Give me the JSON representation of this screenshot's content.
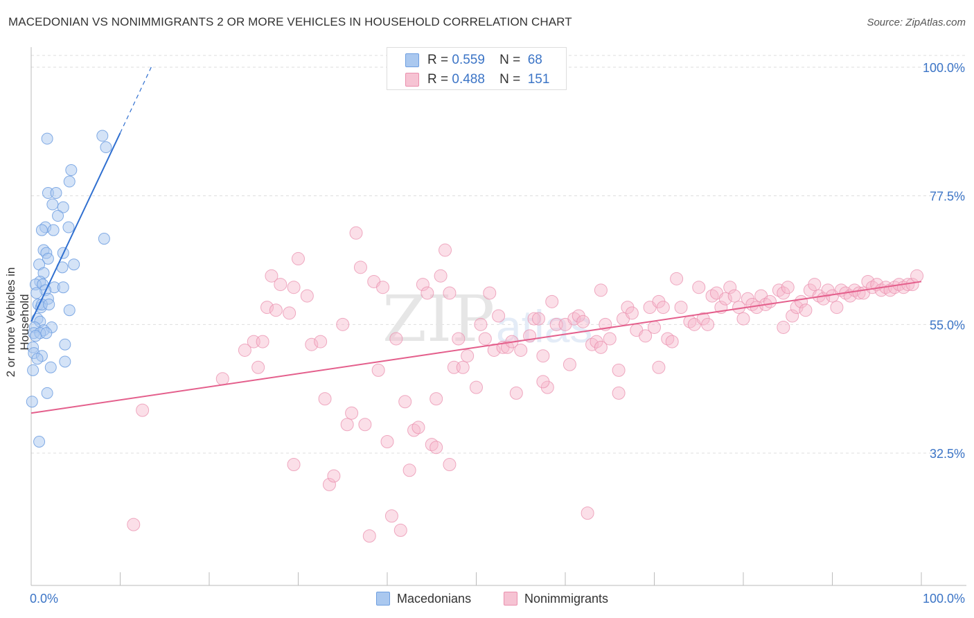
{
  "title": "MACEDONIAN VS NONIMMIGRANTS 2 OR MORE VEHICLES IN HOUSEHOLD CORRELATION CHART",
  "source": "Source: ZipAtlas.com",
  "watermark": {
    "zip": "ZIP",
    "atlas": "atlas"
  },
  "legend_stats": {
    "macedonians": {
      "r_label": "R =",
      "r": "0.559",
      "n_label": "N =",
      "n": "68"
    },
    "nonimmigrants": {
      "r_label": "R =",
      "r": "0.488",
      "n_label": "N =",
      "n": "151"
    }
  },
  "legend_bottom": {
    "macedonians": "Macedonians",
    "nonimmigrants": "Nonimmigrants"
  },
  "colors": {
    "blue_fill": "#aac8ef",
    "blue_stroke": "#6d9ee0",
    "blue_line": "#2f6fd0",
    "pink_fill": "#f6b9cb",
    "pink_stroke": "#ea8fad",
    "pink_line": "#e45f8c",
    "tick_text": "#3b74c6",
    "grid": "#dddddd"
  },
  "chart_data": {
    "type": "scatter",
    "title": "MACEDONIAN VS NONIMMIGRANTS 2 OR MORE VEHICLES IN HOUSEHOLD CORRELATION CHART",
    "xlabel": "",
    "ylabel": "2 or more Vehicles in Household",
    "xlim": [
      0,
      100
    ],
    "ylim": [
      10,
      102
    ],
    "x_tick_labels": [
      "0.0%",
      "100.0%"
    ],
    "y_ticks": [
      32.5,
      55.0,
      77.5,
      100.0
    ],
    "y_tick_labels": [
      "32.5%",
      "55.0%",
      "77.5%",
      "100.0%"
    ],
    "grid": true,
    "series": [
      {
        "name": "Macedonians",
        "r": 0.559,
        "n": 68,
        "trend": {
          "x0": 0,
          "y0": 55.5,
          "x1": 10,
          "y1": 88.5,
          "dash_to_x": 13.5
        },
        "points": [
          [
            1.8,
            87.5
          ],
          [
            8.0,
            88.0
          ],
          [
            8.4,
            86.0
          ],
          [
            4.5,
            82.0
          ],
          [
            4.3,
            80.0
          ],
          [
            1.9,
            78.0
          ],
          [
            2.8,
            78.0
          ],
          [
            2.4,
            76.0
          ],
          [
            3.6,
            75.5
          ],
          [
            3.0,
            74.0
          ],
          [
            1.6,
            72.0
          ],
          [
            2.5,
            71.5
          ],
          [
            4.2,
            72.0
          ],
          [
            1.2,
            71.5
          ],
          [
            8.2,
            70.0
          ],
          [
            1.4,
            68.0
          ],
          [
            1.7,
            67.5
          ],
          [
            3.6,
            67.5
          ],
          [
            1.9,
            66.5
          ],
          [
            4.8,
            65.5
          ],
          [
            0.9,
            65.5
          ],
          [
            3.5,
            65.0
          ],
          [
            1.4,
            64.0
          ],
          [
            1.0,
            62.5
          ],
          [
            0.5,
            62.0
          ],
          [
            1.3,
            62.0
          ],
          [
            2.6,
            61.5
          ],
          [
            3.6,
            61.5
          ],
          [
            1.6,
            61.0
          ],
          [
            0.6,
            60.5
          ],
          [
            1.9,
            59.5
          ],
          [
            0.8,
            58.5
          ],
          [
            1.1,
            58.0
          ],
          [
            1.2,
            58.5
          ],
          [
            2.0,
            58.5
          ],
          [
            4.3,
            57.5
          ],
          [
            0.7,
            56.0
          ],
          [
            1.0,
            55.5
          ],
          [
            0.4,
            54.5
          ],
          [
            2.3,
            54.5
          ],
          [
            1.4,
            54.0
          ],
          [
            0.3,
            53.5
          ],
          [
            1.0,
            53.5
          ],
          [
            1.7,
            53.5
          ],
          [
            0.5,
            53.0
          ],
          [
            0.2,
            51.0
          ],
          [
            3.8,
            51.5
          ],
          [
            0.3,
            50.0
          ],
          [
            1.2,
            49.5
          ],
          [
            0.7,
            49.0
          ],
          [
            3.8,
            48.5
          ],
          [
            2.2,
            47.5
          ],
          [
            0.2,
            47.0
          ],
          [
            1.8,
            43.0
          ],
          [
            0.1,
            41.5
          ],
          [
            0.9,
            34.5
          ]
        ]
      },
      {
        "name": "Nonimmigrants",
        "r": 0.488,
        "n": 151,
        "trend": {
          "x0": 0,
          "y0": 39.5,
          "x1": 100,
          "y1": 62.5
        },
        "points": [
          [
            12.5,
            40.0
          ],
          [
            11.5,
            20.0
          ],
          [
            21.5,
            45.5
          ],
          [
            24.0,
            50.5
          ],
          [
            25.0,
            52.0
          ],
          [
            25.5,
            47.5
          ],
          [
            26.0,
            52.0
          ],
          [
            26.5,
            58.0
          ],
          [
            27.0,
            63.5
          ],
          [
            27.5,
            57.5
          ],
          [
            28.0,
            62.0
          ],
          [
            29.0,
            57.0
          ],
          [
            29.5,
            30.5
          ],
          [
            29.5,
            61.5
          ],
          [
            30.0,
            66.5
          ],
          [
            31.0,
            60.0
          ],
          [
            31.5,
            51.5
          ],
          [
            32.5,
            52.0
          ],
          [
            33.0,
            42.0
          ],
          [
            33.5,
            27.0
          ],
          [
            34.0,
            28.5
          ],
          [
            35.0,
            55.0
          ],
          [
            35.5,
            37.5
          ],
          [
            36.0,
            39.5
          ],
          [
            36.5,
            71.0
          ],
          [
            37.0,
            65.0
          ],
          [
            37.5,
            37.5
          ],
          [
            38.0,
            18.0
          ],
          [
            38.5,
            62.5
          ],
          [
            39.5,
            61.5
          ],
          [
            40.0,
            34.5
          ],
          [
            40.5,
            21.5
          ],
          [
            41.5,
            19.0
          ],
          [
            42.0,
            41.5
          ],
          [
            42.5,
            29.5
          ],
          [
            43.0,
            36.5
          ],
          [
            43.5,
            37.0
          ],
          [
            44.0,
            62.0
          ],
          [
            44.5,
            60.5
          ],
          [
            45.0,
            34.0
          ],
          [
            45.5,
            33.5
          ],
          [
            45.5,
            42.0
          ],
          [
            46.0,
            63.5
          ],
          [
            46.5,
            68.0
          ],
          [
            47.0,
            30.5
          ],
          [
            47.0,
            60.5
          ],
          [
            47.5,
            47.5
          ],
          [
            48.0,
            52.5
          ],
          [
            48.5,
            47.5
          ],
          [
            49.0,
            49.5
          ],
          [
            50.0,
            44.0
          ],
          [
            50.5,
            55.0
          ],
          [
            51.0,
            52.5
          ],
          [
            51.5,
            60.5
          ],
          [
            52.0,
            50.5
          ],
          [
            52.5,
            56.5
          ],
          [
            53.0,
            51.0
          ],
          [
            53.5,
            51.0
          ],
          [
            54.0,
            52.0
          ],
          [
            54.5,
            43.0
          ],
          [
            55.0,
            50.5
          ],
          [
            56.0,
            53.0
          ],
          [
            56.5,
            56.0
          ],
          [
            57.0,
            56.0
          ],
          [
            57.5,
            49.5
          ],
          [
            58.0,
            44.0
          ],
          [
            58.5,
            59.0
          ],
          [
            59.0,
            55.0
          ],
          [
            60.0,
            55.0
          ],
          [
            60.5,
            48.0
          ],
          [
            61.0,
            56.0
          ],
          [
            61.5,
            56.5
          ],
          [
            62.0,
            55.5
          ],
          [
            62.5,
            22.0
          ],
          [
            63.0,
            51.5
          ],
          [
            63.5,
            52.0
          ],
          [
            64.0,
            61.0
          ],
          [
            64.5,
            55.0
          ],
          [
            65.0,
            52.5
          ],
          [
            66.0,
            47.0
          ],
          [
            66.5,
            56.0
          ],
          [
            67.0,
            58.0
          ],
          [
            67.5,
            57.0
          ],
          [
            68.0,
            54.0
          ],
          [
            69.0,
            53.0
          ],
          [
            69.5,
            58.0
          ],
          [
            70.0,
            54.5
          ],
          [
            70.5,
            59.0
          ],
          [
            71.0,
            58.0
          ],
          [
            71.5,
            52.5
          ],
          [
            72.0,
            52.0
          ],
          [
            72.5,
            63.0
          ],
          [
            73.0,
            58.0
          ],
          [
            74.0,
            55.5
          ],
          [
            74.5,
            55.0
          ],
          [
            75.0,
            61.5
          ],
          [
            75.5,
            56.0
          ],
          [
            76.0,
            55.0
          ],
          [
            76.5,
            60.0
          ],
          [
            77.0,
            60.5
          ],
          [
            77.5,
            58.0
          ],
          [
            78.0,
            59.5
          ],
          [
            78.5,
            61.5
          ],
          [
            79.0,
            60.0
          ],
          [
            79.5,
            58.0
          ],
          [
            80.0,
            56.0
          ],
          [
            80.5,
            59.5
          ],
          [
            81.0,
            58.5
          ],
          [
            81.5,
            58.0
          ],
          [
            82.0,
            60.0
          ],
          [
            82.5,
            58.5
          ],
          [
            83.0,
            59.0
          ],
          [
            84.0,
            61.0
          ],
          [
            84.5,
            60.5
          ],
          [
            85.0,
            61.5
          ],
          [
            85.5,
            56.5
          ],
          [
            86.0,
            58.0
          ],
          [
            86.5,
            59.0
          ],
          [
            87.0,
            57.5
          ],
          [
            87.5,
            61.0
          ],
          [
            88.0,
            62.0
          ],
          [
            88.5,
            60.0
          ],
          [
            89.0,
            59.5
          ],
          [
            89.5,
            61.0
          ],
          [
            90.0,
            60.0
          ],
          [
            90.5,
            58.0
          ],
          [
            91.0,
            61.0
          ],
          [
            91.5,
            60.5
          ],
          [
            92.0,
            60.0
          ],
          [
            92.5,
            61.0
          ],
          [
            93.0,
            60.5
          ],
          [
            93.5,
            60.5
          ],
          [
            94.0,
            62.5
          ],
          [
            94.5,
            61.5
          ],
          [
            95.0,
            62.0
          ],
          [
            95.5,
            61.0
          ],
          [
            96.0,
            61.5
          ],
          [
            96.5,
            61.0
          ],
          [
            97.0,
            61.5
          ],
          [
            97.5,
            62.0
          ],
          [
            98.0,
            61.5
          ],
          [
            98.5,
            62.0
          ],
          [
            99.0,
            62.0
          ],
          [
            99.5,
            63.5
          ],
          [
            70.5,
            47.5
          ],
          [
            66.0,
            43.0
          ],
          [
            64.0,
            51.0
          ],
          [
            41.0,
            52.5
          ],
          [
            39.0,
            47.0
          ],
          [
            57.5,
            45.0
          ],
          [
            84.5,
            54.5
          ]
        ]
      }
    ]
  }
}
